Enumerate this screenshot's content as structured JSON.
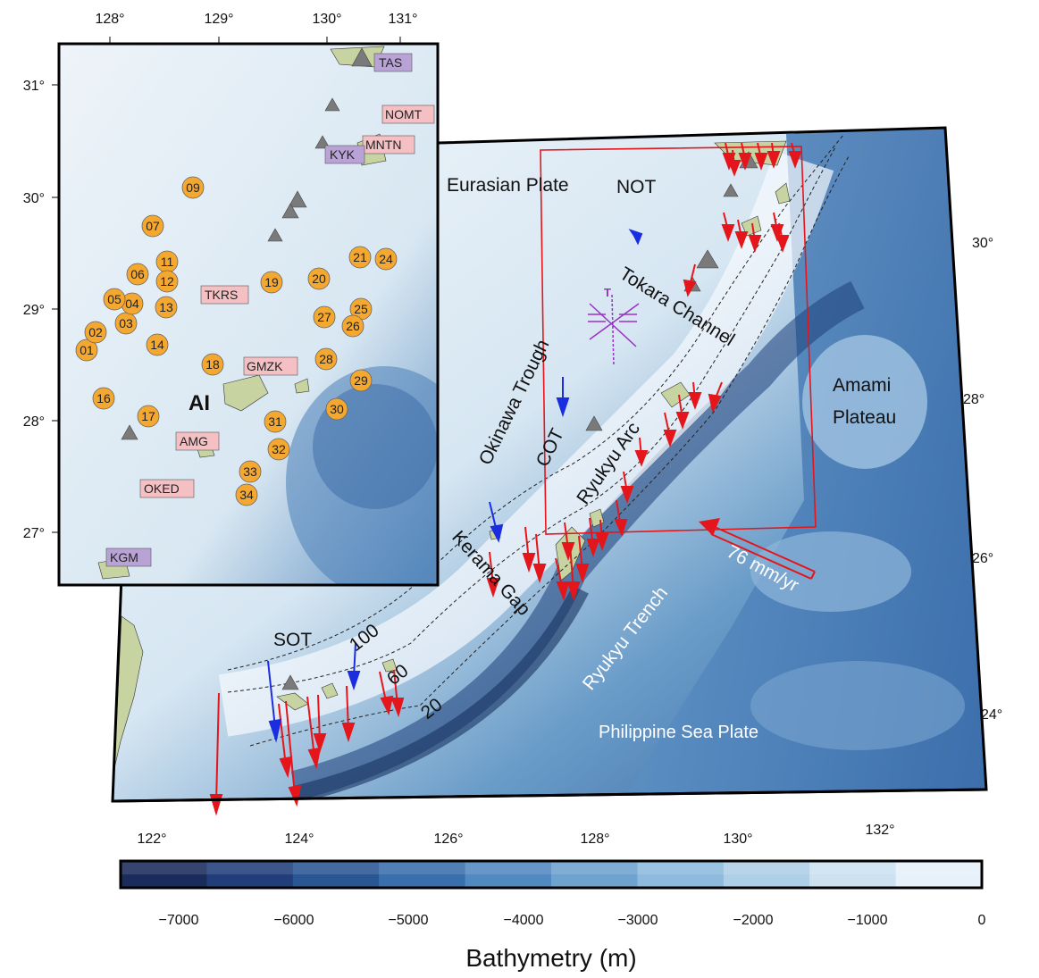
{
  "main_map": {
    "lon_ticks": [
      "122°",
      "124°",
      "126°",
      "128°",
      "130°",
      "132°"
    ],
    "lat_ticks": [
      "24°",
      "26°",
      "28°",
      "30°"
    ],
    "labels": {
      "eurasian_plate": "Eurasian Plate",
      "not": "NOT",
      "tokara_channel": "Tokara Channel",
      "okinawa_trough": "Okinawa Trough",
      "cot": "COT",
      "ryukyu_arc": "Ryukyu Arc",
      "kerama_gap": "Kerama Gap",
      "sot": "SOT",
      "amami_plateau": "Amami\nPlateau",
      "ryukyu_trench": "Ryukyu Trench",
      "philippine_sea_plate": "Philippine Sea Plate",
      "rate": "76 mm/yr"
    },
    "contour_labels": [
      "100",
      "60",
      "20"
    ],
    "colors": {
      "gps_vector": "#e4161b",
      "stress_vector": "#1a2ee0",
      "region_box": "#e4161b",
      "focal_symbol": "#9b30c8",
      "land": "#c7d3a0",
      "volcano": "#7a7a7a"
    }
  },
  "inset_map": {
    "lon_ticks": [
      "128°",
      "129°",
      "130°",
      "131°"
    ],
    "lat_ticks": [
      "27°",
      "28°",
      "29°",
      "30°",
      "31°"
    ],
    "island_label": "AI",
    "stations_pink": [
      "NOMT",
      "MNTN",
      "TKRS",
      "GMZK",
      "AMG",
      "OKED"
    ],
    "stations_purple": [
      "TAS",
      "KYK",
      "KGM"
    ],
    "obs_sites": [
      "01",
      "02",
      "03",
      "04",
      "05",
      "06",
      "07",
      "09",
      "11",
      "12",
      "13",
      "14",
      "16",
      "17",
      "18",
      "19",
      "20",
      "21",
      "24",
      "25",
      "26",
      "27",
      "28",
      "29",
      "30",
      "31",
      "32",
      "33",
      "34"
    ],
    "colors": {
      "obs_fill": "#f5a830",
      "station_pink": "#f5c0c3",
      "station_purple": "#b9a3d6"
    }
  },
  "colorbar": {
    "ticks": [
      "−7000",
      "−6000",
      "−5000",
      "−4000",
      "−3000",
      "−2000",
      "−1000",
      "0"
    ],
    "title": "Bathymetry (m)",
    "range": [
      -7500,
      0
    ],
    "colors": [
      "#1a2c5c",
      "#213e7a",
      "#2a5694",
      "#3a6fae",
      "#5189c1",
      "#6ea2cf",
      "#8dbadd",
      "#adcfe8",
      "#cce2f1",
      "#e6f1f9",
      "#ffffff"
    ]
  }
}
